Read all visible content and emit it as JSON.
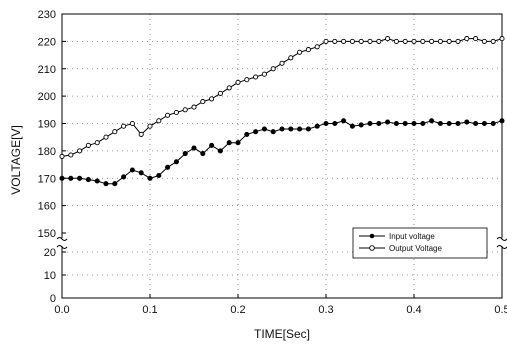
{
  "chart_data": {
    "type": "line",
    "xlabel": "TIME[Sec]",
    "ylabel": "VOLTAGE[V]",
    "xlim": [
      0,
      0.5
    ],
    "x_ticks": [
      "0.0",
      "0.1",
      "0.2",
      "0.3",
      "0.4",
      "0.5"
    ],
    "y_ticks_lower": [
      "0",
      "10",
      "20"
    ],
    "y_ticks_upper": [
      "150",
      "160",
      "170",
      "180",
      "190",
      "200",
      "210",
      "220",
      "230"
    ],
    "ylim_lower": [
      0,
      20
    ],
    "ylim_upper": [
      150,
      230
    ],
    "axis_break": "between 20 and 150",
    "grid": true,
    "legend_position": "lower-right",
    "series": [
      {
        "name": "Input voltage",
        "marker": "filled-circle",
        "x": [
          0.0,
          0.01,
          0.02,
          0.03,
          0.04,
          0.05,
          0.06,
          0.07,
          0.08,
          0.09,
          0.1,
          0.11,
          0.12,
          0.13,
          0.14,
          0.15,
          0.16,
          0.17,
          0.18,
          0.19,
          0.2,
          0.21,
          0.22,
          0.23,
          0.24,
          0.25,
          0.26,
          0.27,
          0.28,
          0.29,
          0.3,
          0.31,
          0.32,
          0.33,
          0.34,
          0.35,
          0.36,
          0.37,
          0.38,
          0.39,
          0.4,
          0.41,
          0.42,
          0.43,
          0.44,
          0.45,
          0.46,
          0.47,
          0.48,
          0.49,
          0.5
        ],
        "y": [
          170,
          170,
          170,
          169.5,
          169,
          168,
          168,
          170.5,
          173,
          172,
          170,
          171,
          174,
          176,
          179,
          181,
          179,
          182,
          180,
          183,
          183,
          186,
          187,
          188,
          187,
          188,
          188,
          188,
          188,
          189,
          190,
          190,
          191,
          189,
          189.5,
          190,
          190,
          190.5,
          190,
          190,
          190,
          190,
          191,
          190,
          190,
          190,
          190.5,
          190,
          190,
          190,
          191
        ]
      },
      {
        "name": "Output Voltage",
        "marker": "open-circle",
        "x": [
          0.0,
          0.01,
          0.02,
          0.03,
          0.04,
          0.05,
          0.06,
          0.07,
          0.08,
          0.09,
          0.1,
          0.11,
          0.12,
          0.13,
          0.14,
          0.15,
          0.16,
          0.17,
          0.18,
          0.19,
          0.2,
          0.21,
          0.22,
          0.23,
          0.24,
          0.25,
          0.26,
          0.27,
          0.28,
          0.29,
          0.3,
          0.31,
          0.32,
          0.33,
          0.34,
          0.35,
          0.36,
          0.37,
          0.38,
          0.39,
          0.4,
          0.41,
          0.42,
          0.43,
          0.44,
          0.45,
          0.46,
          0.47,
          0.48,
          0.49,
          0.5
        ],
        "y": [
          178,
          178.5,
          180,
          182,
          183,
          185,
          187,
          189,
          190,
          186,
          189,
          191,
          193,
          194,
          195,
          196,
          198,
          199,
          201,
          203,
          205,
          206,
          207,
          208,
          210,
          212,
          214,
          216,
          217,
          218,
          220,
          220,
          220,
          220,
          220,
          220,
          220,
          221,
          220,
          220,
          220,
          220,
          220,
          220,
          220,
          220,
          221,
          221,
          220,
          220,
          221
        ]
      }
    ]
  }
}
